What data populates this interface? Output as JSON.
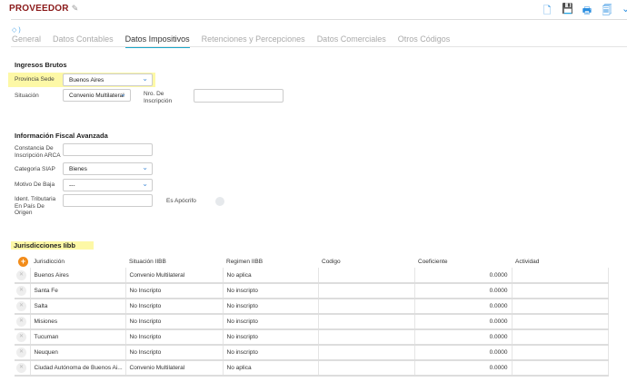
{
  "header": {
    "title": "PROVEEDOR",
    "icons": [
      "new-doc-icon",
      "save-icon",
      "print-icon",
      "copy-icon",
      "chevron-icon"
    ]
  },
  "tabs": [
    "General",
    "Datos Contables",
    "Datos Impositivos",
    "Retenciones y Percepciones",
    "Datos Comerciales",
    "Otros Códigos"
  ],
  "active_tab": "Datos Impositivos",
  "ingresos": {
    "title": "Ingresos Brutos",
    "provincia_label": "Provincia Sede",
    "provincia_value": "Buenos Aires",
    "situacion_label": "Situación",
    "situacion_value": "Convenio Multilateral",
    "nro_label": "Nro. De Inscripción",
    "nro_value": ""
  },
  "fiscal": {
    "title": "Información Fiscal Avanzada",
    "constancia_label": "Constancia De Inscripción ARCA",
    "constancia_value": "",
    "categoria_label": "Categoria SIAP",
    "categoria_value": "Bienes",
    "motivo_label": "Motivo De Baja",
    "motivo_value": "---",
    "ident_label": "Ident. Tributaria En País De Origen",
    "ident_value": "",
    "apocrifo_label": "Es Apócrifo",
    "apocrifo_on": false
  },
  "jurisdicciones": {
    "title": "Jurisdicciones Iibb",
    "columns": [
      "Jurisdicción",
      "Situación IIBB",
      "Regimen IIBB",
      "Codigo",
      "Coeficiente",
      "Actividad"
    ],
    "rows": [
      [
        "Buenos Aires",
        "Convenio Multilateral",
        "No aplica",
        "",
        "0.0000",
        ""
      ],
      [
        "Santa Fe",
        "No Inscripto",
        "No inscripto",
        "",
        "0.0000",
        ""
      ],
      [
        "Salta",
        "No Inscripto",
        "No inscripto",
        "",
        "0.0000",
        ""
      ],
      [
        "Misiones",
        "No Inscripto",
        "No inscripto",
        "",
        "0.0000",
        ""
      ],
      [
        "Tucuman",
        "No Inscripto",
        "No inscripto",
        "",
        "0.0000",
        ""
      ],
      [
        "Neuquen",
        "No Inscripto",
        "No inscripto",
        "",
        "0.0000",
        ""
      ],
      [
        "Ciudad Autónoma de Buenos Ai...",
        "Convenio Multilateral",
        "No aplica",
        "",
        "0.0000",
        ""
      ]
    ]
  },
  "colors": {
    "title": "#8b1a1a",
    "accent": "#19a7c9",
    "icon": "#2a8ee0",
    "highlight": "#fdf8a6",
    "add": "#f28c1a"
  }
}
